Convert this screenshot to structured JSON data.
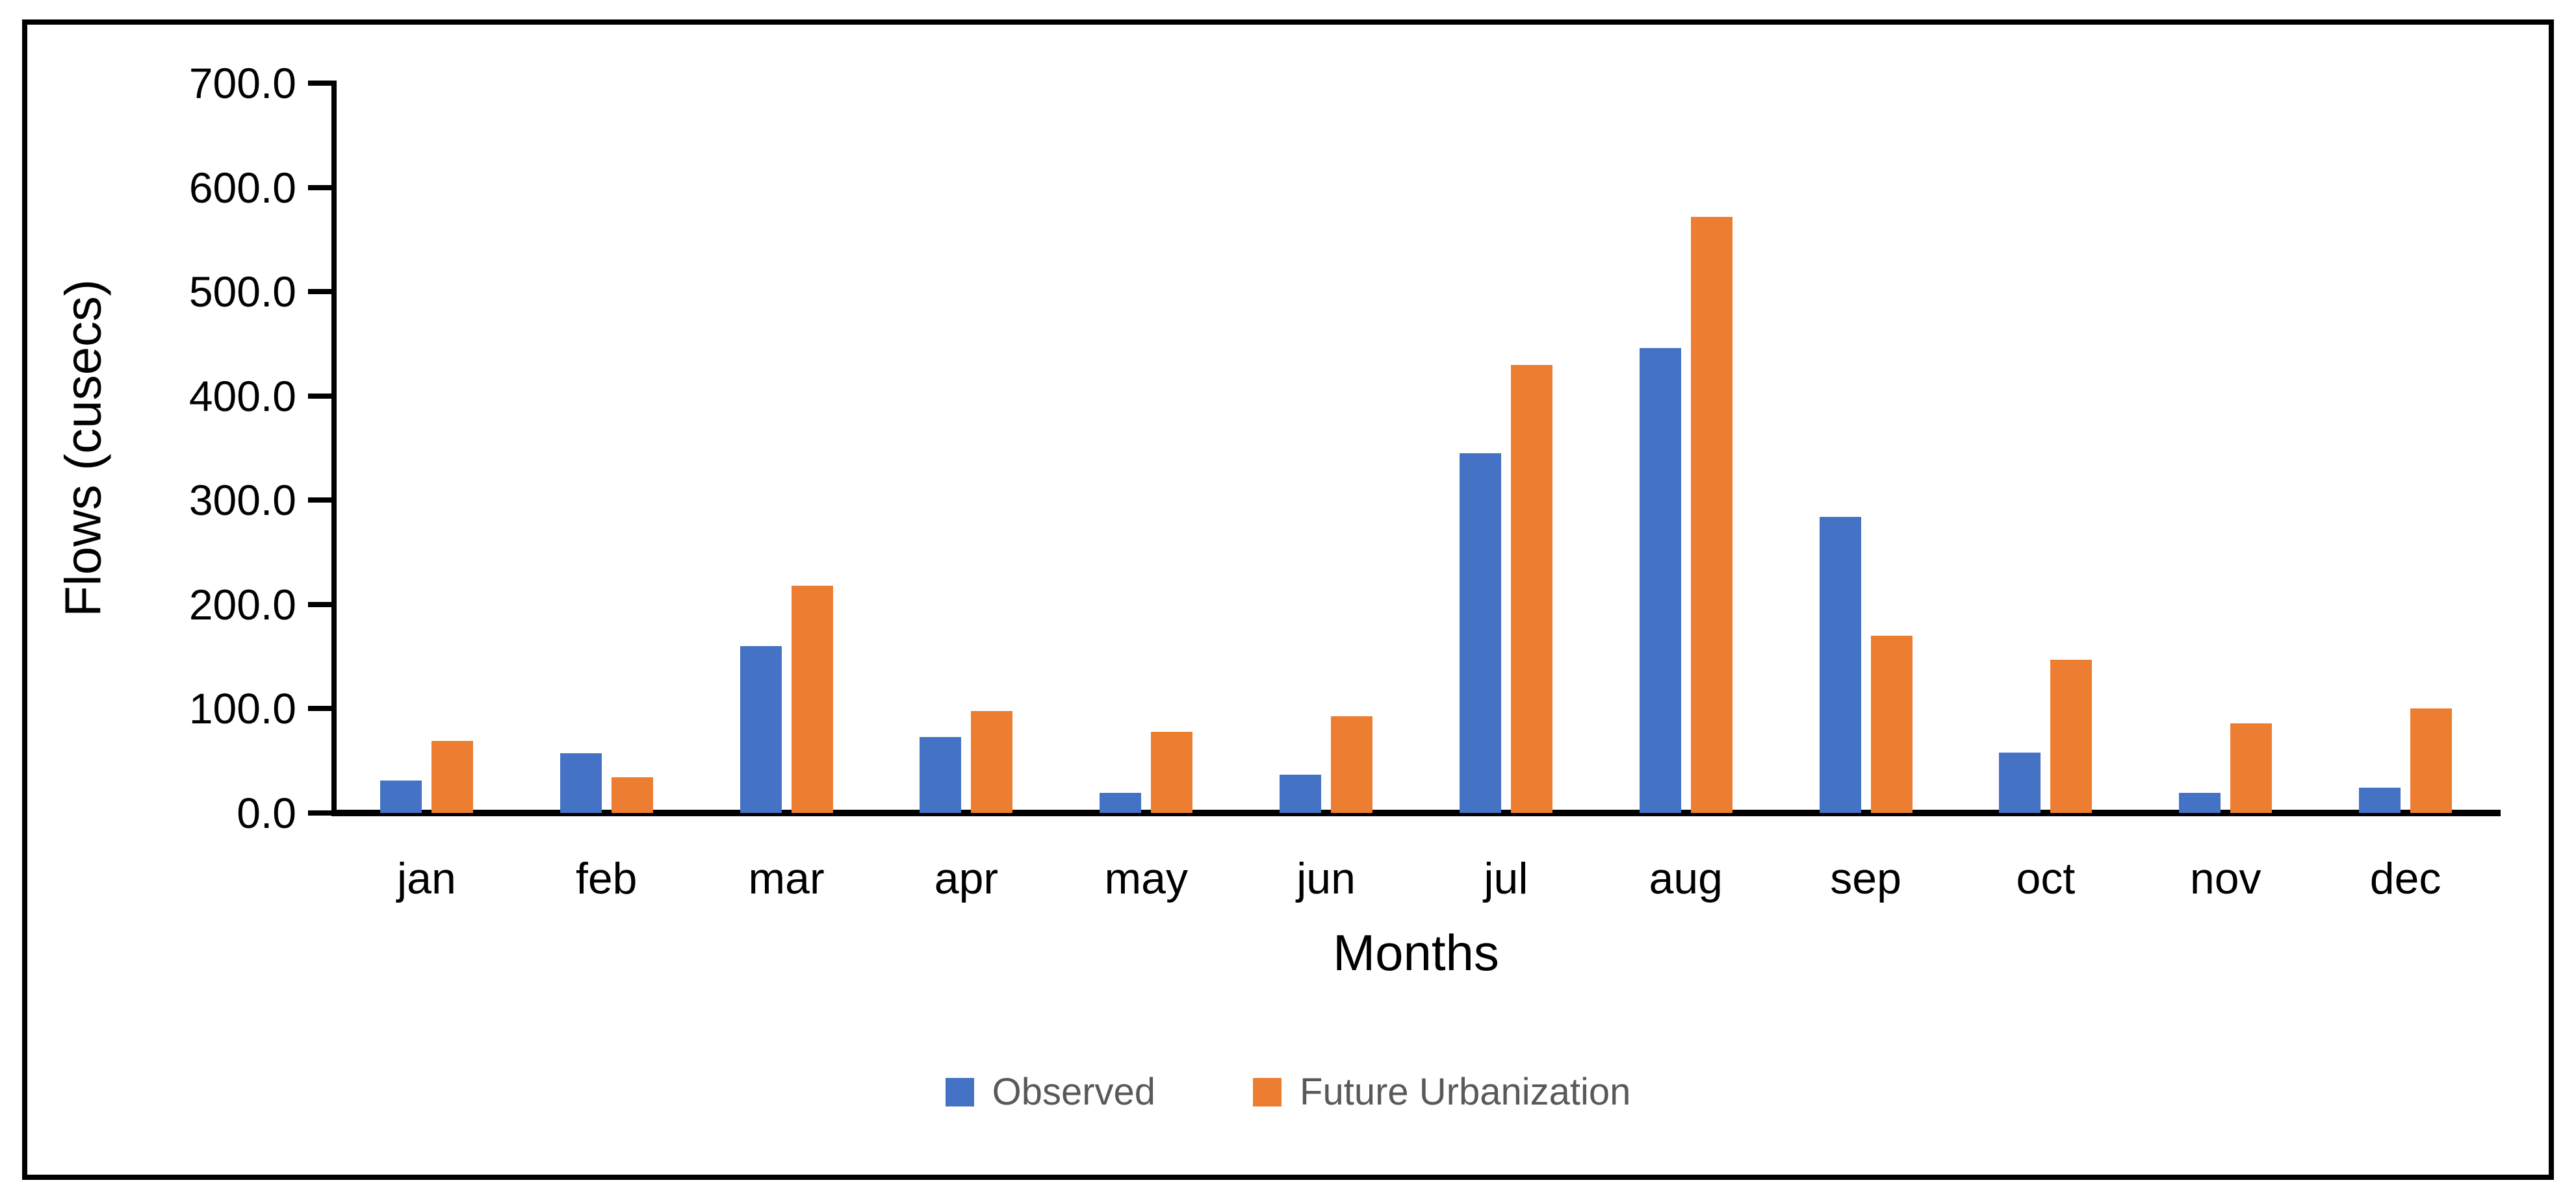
{
  "chart_data": {
    "type": "bar",
    "title": "",
    "categories": [
      "jan",
      "feb",
      "mar",
      "apr",
      "may",
      "jun",
      "jul",
      "aug",
      "sep",
      "oct",
      "nov",
      "dec"
    ],
    "series": [
      {
        "name": "Observed",
        "color": "#4472C4",
        "values": [
          31,
          57,
          160,
          73,
          19,
          37,
          345,
          446,
          284,
          58,
          19,
          24
        ]
      },
      {
        "name": "Future Urbanization",
        "color": "#ED7D31",
        "values": [
          69,
          34,
          218,
          98,
          78,
          93,
          430,
          572,
          170,
          147,
          86,
          100
        ]
      }
    ],
    "xlabel": "Months",
    "ylabel": "Flows (cusecs)",
    "ylim": [
      0,
      700
    ],
    "ytick_step": 100,
    "ytick_labels": [
      "0.0",
      "100.0",
      "200.0",
      "300.0",
      "400.0",
      "500.0",
      "600.0",
      "700.0"
    ],
    "grid": false,
    "legend_position": "bottom",
    "axis_color": "#000000",
    "legend_text_color": "#595959",
    "frame_border_color": "#000000"
  }
}
